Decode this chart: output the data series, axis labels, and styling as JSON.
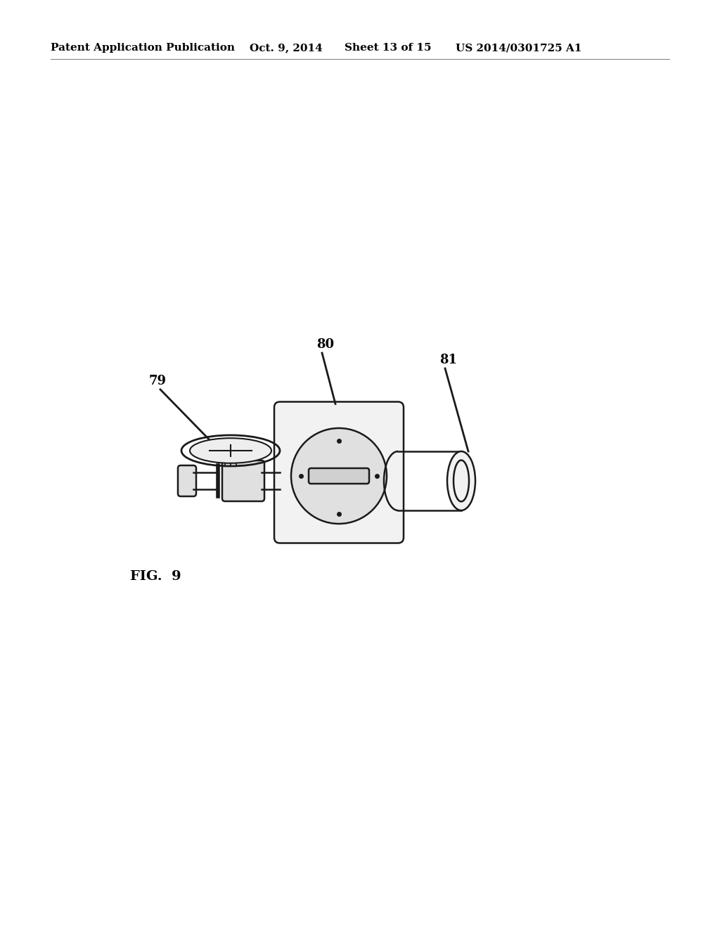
{
  "background_color": "#ffffff",
  "header_text": "Patent Application Publication",
  "header_date": "Oct. 9, 2014",
  "header_sheet": "Sheet 13 of 15",
  "header_patent": "US 2014/0301725 A1",
  "fig_label": "FIG.  9",
  "label_79": "79",
  "label_80": "80",
  "label_81": "81",
  "label_fontsize": 13,
  "header_fontsize": 11,
  "fig_label_fontsize": 14,
  "line_color": "#1a1a1a",
  "face_light": "#f2f2f2",
  "face_mid": "#e0e0e0"
}
